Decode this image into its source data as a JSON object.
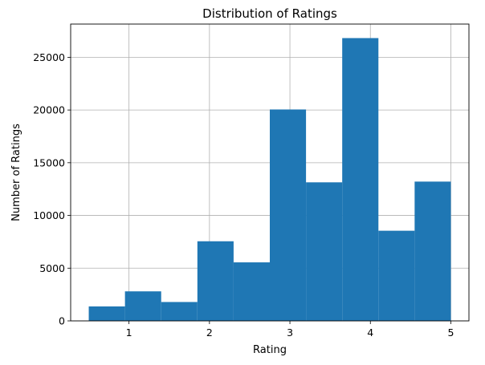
{
  "chart_data": {
    "type": "bar",
    "title": "Distribution of Ratings",
    "xlabel": "Rating",
    "ylabel": "Number of Ratings",
    "bins": [
      {
        "x0": 0.5,
        "x1": 0.95,
        "value": 1370
      },
      {
        "x0": 0.95,
        "x1": 1.4,
        "value": 2800
      },
      {
        "x0": 1.4,
        "x1": 1.85,
        "value": 1790
      },
      {
        "x0": 1.85,
        "x1": 2.3,
        "value": 7550
      },
      {
        "x0": 2.3,
        "x1": 2.75,
        "value": 5550
      },
      {
        "x0": 2.75,
        "x1": 3.2,
        "value": 20050
      },
      {
        "x0": 3.2,
        "x1": 3.65,
        "value": 13140
      },
      {
        "x0": 3.65,
        "x1": 4.1,
        "value": 26820
      },
      {
        "x0": 4.1,
        "x1": 4.55,
        "value": 8550
      },
      {
        "x0": 4.55,
        "x1": 5.0,
        "value": 13210
      }
    ],
    "xlim": [
      0.275,
      5.225
    ],
    "ylim": [
      0,
      28150
    ],
    "xticks": [
      1,
      2,
      3,
      4,
      5
    ],
    "yticks": [
      0,
      5000,
      10000,
      15000,
      20000,
      25000
    ],
    "grid": true,
    "bar_color": "#1f77b4",
    "grid_color": "#b0b0b0"
  }
}
